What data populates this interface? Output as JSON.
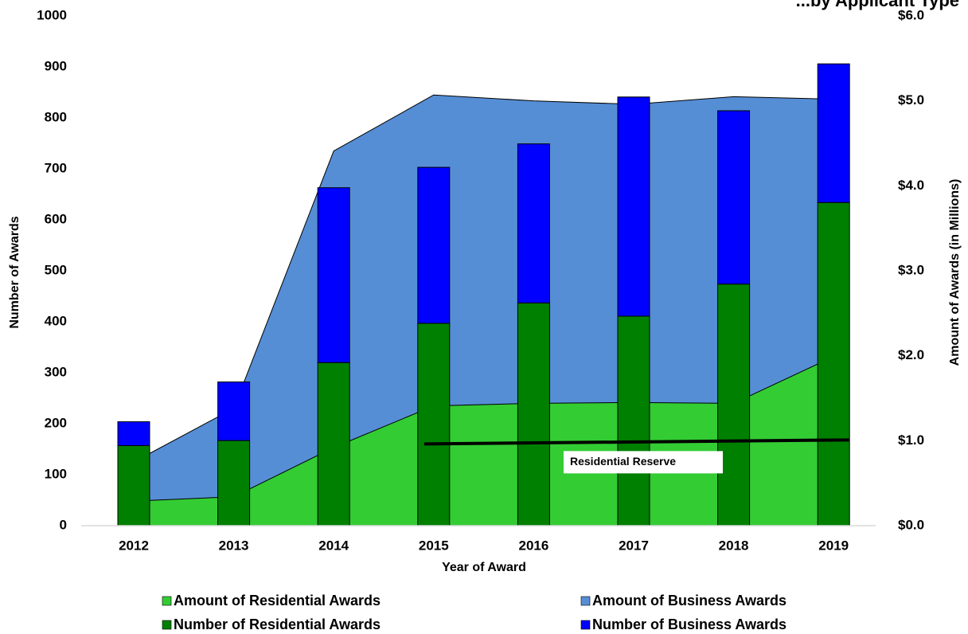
{
  "chart_data": {
    "type": "bar",
    "title": "...by Applicant Type",
    "categories": [
      "2012",
      "2013",
      "2014",
      "2015",
      "2016",
      "2017",
      "2018",
      "2019"
    ],
    "xlabel": "Year of Award",
    "ylabel": "Number of Awards",
    "y2label": "Amount of Awards (in Millions)",
    "ylim": [
      0,
      1000
    ],
    "yticks": [
      "0",
      "100",
      "200",
      "300",
      "400",
      "500",
      "600",
      "700",
      "800",
      "900",
      "1000"
    ],
    "y2lim": [
      0,
      6.0
    ],
    "y2ticks": [
      "$0.0",
      "$1.0",
      "$2.0",
      "$3.0",
      "$4.0",
      "$5.0",
      "$6.0"
    ],
    "series": [
      {
        "name": "Amount of Residential Awards",
        "kind": "area",
        "axis": "right",
        "color": "#33CC33",
        "values": [
          0.29,
          0.34,
          0.92,
          1.41,
          1.44,
          1.45,
          1.44,
          1.99
        ]
      },
      {
        "name": "Amount of Business Awards",
        "kind": "area",
        "axis": "right",
        "color": "#558ED5",
        "values": [
          0.46,
          1.04,
          3.49,
          3.66,
          3.56,
          3.51,
          3.61,
          3.03
        ]
      },
      {
        "name": "Number of Residential Awards",
        "kind": "bar",
        "axis": "left",
        "color": "#008000",
        "values": [
          157,
          167,
          320,
          397,
          437,
          411,
          474,
          634
        ]
      },
      {
        "name": "Number of Business Awards",
        "kind": "bar",
        "axis": "left",
        "color": "#0000FF",
        "values": [
          47,
          115,
          343,
          306,
          312,
          430,
          340,
          272
        ]
      }
    ],
    "annotation": {
      "label": "Residential Reserve",
      "value": 1.0,
      "from_category": "2015",
      "to_category": "2019"
    },
    "grid": false,
    "legend_position": "bottom"
  }
}
